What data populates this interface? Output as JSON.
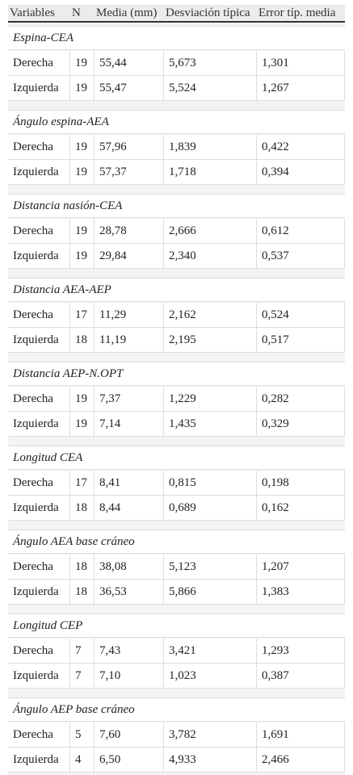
{
  "table": {
    "columns": [
      "Variables",
      "N",
      "Media (mm)",
      "Desviación típica",
      "Error típ. media"
    ],
    "groups": [
      {
        "title": "Espina-CEA",
        "rows": [
          [
            "Derecha",
            "19",
            "55,44",
            "5,673",
            "1,301"
          ],
          [
            "Izquierda",
            "19",
            "55,47",
            "5,524",
            "1,267"
          ]
        ]
      },
      {
        "title": "Ángulo espina-AEA",
        "rows": [
          [
            "Derecha",
            "19",
            "57,96",
            "1,839",
            "0,422"
          ],
          [
            "Izquierda",
            "19",
            "57,37",
            "1,718",
            "0,394"
          ]
        ]
      },
      {
        "title": "Distancia nasión-CEA",
        "rows": [
          [
            "Derecha",
            "19",
            "28,78",
            "2,666",
            "0,612"
          ],
          [
            "Izquierda",
            "19",
            "29,84",
            "2,340",
            "0,537"
          ]
        ]
      },
      {
        "title": "Distancia AEA-AEP",
        "rows": [
          [
            "Derecha",
            "17",
            "11,29",
            "2,162",
            "0,524"
          ],
          [
            "Izquierda",
            "18",
            "11,19",
            "2,195",
            "0,517"
          ]
        ]
      },
      {
        "title": "Distancia AEP-N.OPT",
        "rows": [
          [
            "Derecha",
            "19",
            "7,37",
            "1,229",
            "0,282"
          ],
          [
            "Izquierda",
            "19",
            "7,14",
            "1,435",
            "0,329"
          ]
        ]
      },
      {
        "title": "Longitud CEA",
        "rows": [
          [
            "Derecha",
            "17",
            "8,41",
            "0,815",
            "0,198"
          ],
          [
            "Izquierda",
            "18",
            "8,44",
            "0,689",
            "0,162"
          ]
        ]
      },
      {
        "title": "Ángulo AEA base cráneo",
        "rows": [
          [
            "Derecha",
            "18",
            "38,08",
            "5,123",
            "1,207"
          ],
          [
            "Izquierda",
            "18",
            "36,53",
            "5,866",
            "1,383"
          ]
        ]
      },
      {
        "title": "Longitud CEP",
        "rows": [
          [
            "Derecha",
            "7",
            "7,43",
            "3,421",
            "1,293"
          ],
          [
            "Izquierda",
            "7",
            "7,10",
            "1,023",
            "0,387"
          ]
        ]
      },
      {
        "title": "Ángulo AEP base cráneo",
        "rows": [
          [
            "Derecha",
            "5",
            "7,60",
            "3,782",
            "1,691"
          ],
          [
            "Izquierda",
            "4",
            "6,50",
            "4,933",
            "2,466"
          ]
        ]
      }
    ]
  }
}
